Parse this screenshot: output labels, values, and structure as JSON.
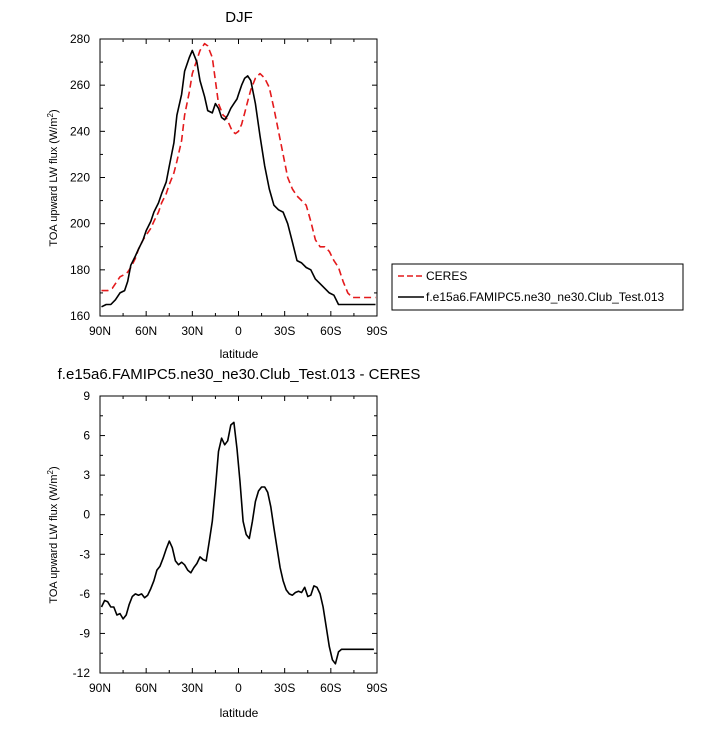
{
  "chart_data": [
    {
      "type": "line",
      "title": "DJF",
      "xlabel": "latitude",
      "ylabel": "TOA upward LW flux (W/m",
      "ylabel_sup": "2",
      "ylabel_close": ")",
      "xlim": [
        90,
        -90
      ],
      "ylim": [
        160,
        280
      ],
      "xticks": [
        90,
        60,
        30,
        0,
        -30,
        -60,
        -90
      ],
      "xtick_labels": [
        "90N",
        "60N",
        "30N",
        "0",
        "30S",
        "60S",
        "90S"
      ],
      "yticks": [
        160,
        180,
        200,
        220,
        240,
        260,
        280
      ],
      "ytick_labels": [
        "160",
        "180",
        "200",
        "220",
        "240",
        "260",
        "280"
      ],
      "legend_position": "right",
      "series": [
        {
          "name": "CERES",
          "color": "#e41a1c",
          "dash": true,
          "x": [
            89,
            85,
            82,
            80,
            77,
            74,
            72,
            70,
            67,
            65,
            62,
            60,
            57,
            55,
            52,
            50,
            47,
            45,
            42,
            40,
            37,
            35,
            32,
            30,
            27,
            25,
            22,
            20,
            17,
            15,
            13,
            10,
            8,
            6,
            4,
            2,
            0,
            -2,
            -4,
            -6,
            -8,
            -11,
            -14,
            -17,
            -20,
            -23,
            -26,
            -29,
            -32,
            -35,
            -38,
            -41,
            -44,
            -47,
            -50,
            -53,
            -56,
            -59,
            -62,
            -65,
            -68,
            -71,
            -74,
            -77,
            -80,
            -83,
            -86,
            -89
          ],
          "y": [
            171,
            171,
            172,
            174,
            177,
            178,
            179,
            181,
            185,
            189,
            193,
            195,
            198,
            201,
            205,
            209,
            213,
            217,
            222,
            227,
            236,
            247,
            257,
            265,
            271,
            275,
            278,
            277,
            272,
            262,
            252,
            247,
            246,
            243,
            240,
            239,
            240,
            243,
            248,
            253,
            258,
            263,
            265,
            263,
            259,
            250,
            240,
            230,
            220,
            215,
            212,
            210,
            208,
            201,
            193,
            190,
            190,
            188,
            184,
            181,
            175,
            170,
            168,
            168,
            168,
            168,
            168,
            168
          ]
        },
        {
          "name": "f.e15a6.FAMIPC5.ne30_ne30.Club_Test.013",
          "color": "#000000",
          "dash": false,
          "x": [
            89,
            86,
            83,
            80,
            77,
            74,
            72,
            70,
            67,
            65,
            62,
            60,
            57,
            55,
            52,
            50,
            47,
            45,
            42,
            40,
            37,
            35,
            32,
            30,
            27,
            25,
            22,
            20,
            17,
            15,
            13,
            11,
            9,
            7,
            5,
            3,
            1,
            0,
            -2,
            -4,
            -6,
            -8,
            -11,
            -14,
            -17,
            -20,
            -23,
            -26,
            -29,
            -32,
            -35,
            -38,
            -41,
            -44,
            -47,
            -50,
            -53,
            -56,
            -59,
            -62,
            -65,
            -68,
            -71,
            -74,
            -77,
            -80,
            -83,
            -86,
            -89
          ],
          "y": [
            164,
            165,
            165,
            167,
            170,
            171,
            175,
            182,
            186,
            189,
            193,
            197,
            201,
            205,
            209,
            213,
            218,
            225,
            235,
            247,
            256,
            266,
            272,
            275,
            270,
            262,
            255,
            249,
            248,
            252,
            250,
            246,
            245,
            247,
            250,
            252,
            254,
            256,
            260,
            263,
            264,
            262,
            252,
            238,
            225,
            215,
            208,
            206,
            205,
            200,
            192,
            184,
            183,
            181,
            180,
            176,
            174,
            172,
            170,
            169,
            165,
            165,
            165,
            165,
            165,
            165,
            165,
            165,
            165
          ]
        }
      ]
    },
    {
      "type": "line",
      "title": "f.e15a6.FAMIPC5.ne30_ne30.Club_Test.013 - CERES",
      "xlabel": "latitude",
      "ylabel": "TOA upward LW flux (W/m",
      "ylabel_sup": "2",
      "ylabel_close": ")",
      "xlim": [
        90,
        -90
      ],
      "ylim": [
        -12,
        9
      ],
      "xticks": [
        90,
        60,
        30,
        0,
        -30,
        -60,
        -90
      ],
      "xtick_labels": [
        "90N",
        "60N",
        "30N",
        "0",
        "30S",
        "60S",
        "90S"
      ],
      "yticks": [
        -12,
        -9,
        -6,
        -3,
        0,
        3,
        6,
        9
      ],
      "ytick_labels": [
        "-12",
        "-9",
        "-6",
        "-3",
        "0",
        "3",
        "6",
        "9"
      ],
      "series": [
        {
          "name": "",
          "color": "#000000",
          "dash": false,
          "x": [
            89,
            87,
            85,
            83,
            81,
            79,
            77,
            75,
            73,
            71,
            69,
            67,
            65,
            63,
            61,
            59,
            57,
            55,
            53,
            51,
            49,
            47,
            45,
            43,
            41,
            39,
            37,
            35,
            33,
            31,
            29,
            27,
            25,
            23,
            21,
            19,
            17,
            15,
            13,
            11,
            9,
            7,
            5,
            3,
            1,
            -1,
            -3,
            -5,
            -7,
            -9,
            -11,
            -13,
            -15,
            -17,
            -19,
            -21,
            -23,
            -25,
            -27,
            -29,
            -31,
            -33,
            -35,
            -37,
            -39,
            -41,
            -43,
            -45,
            -47,
            -49,
            -51,
            -53,
            -55,
            -57,
            -59,
            -61,
            -63,
            -65,
            -67,
            -69,
            -71,
            -73,
            -75,
            -77,
            -79,
            -81,
            -83,
            -85,
            -86,
            -87,
            -88
          ],
          "y": [
            -7.0,
            -6.5,
            -6.6,
            -7.0,
            -7.0,
            -7.6,
            -7.5,
            -7.9,
            -7.6,
            -6.8,
            -6.2,
            -6.0,
            -6.1,
            -6.0,
            -6.3,
            -6.1,
            -5.6,
            -5.0,
            -4.2,
            -3.9,
            -3.3,
            -2.6,
            -2.0,
            -2.5,
            -3.5,
            -3.8,
            -3.6,
            -3.8,
            -4.2,
            -4.4,
            -4.0,
            -3.7,
            -3.2,
            -3.4,
            -3.5,
            -2.0,
            -0.5,
            2.0,
            4.8,
            5.8,
            5.3,
            5.6,
            6.8,
            7.0,
            5.0,
            2.5,
            -0.5,
            -1.5,
            -1.8,
            -0.5,
            1.0,
            1.8,
            2.1,
            2.1,
            1.7,
            0.6,
            -1.0,
            -2.5,
            -4.0,
            -5.0,
            -5.7,
            -6.0,
            -6.1,
            -5.9,
            -5.8,
            -5.9,
            -5.5,
            -6.2,
            -6.1,
            -5.4,
            -5.5,
            -6.0,
            -7.0,
            -8.5,
            -10.0,
            -11.0,
            -11.3,
            -10.4,
            -10.2,
            -10.2,
            -10.2,
            -10.2,
            -10.2,
            -10.2,
            -10.2,
            -10.2,
            -10.2,
            -10.2,
            -10.2,
            -10.2,
            -10.2
          ]
        }
      ]
    }
  ]
}
